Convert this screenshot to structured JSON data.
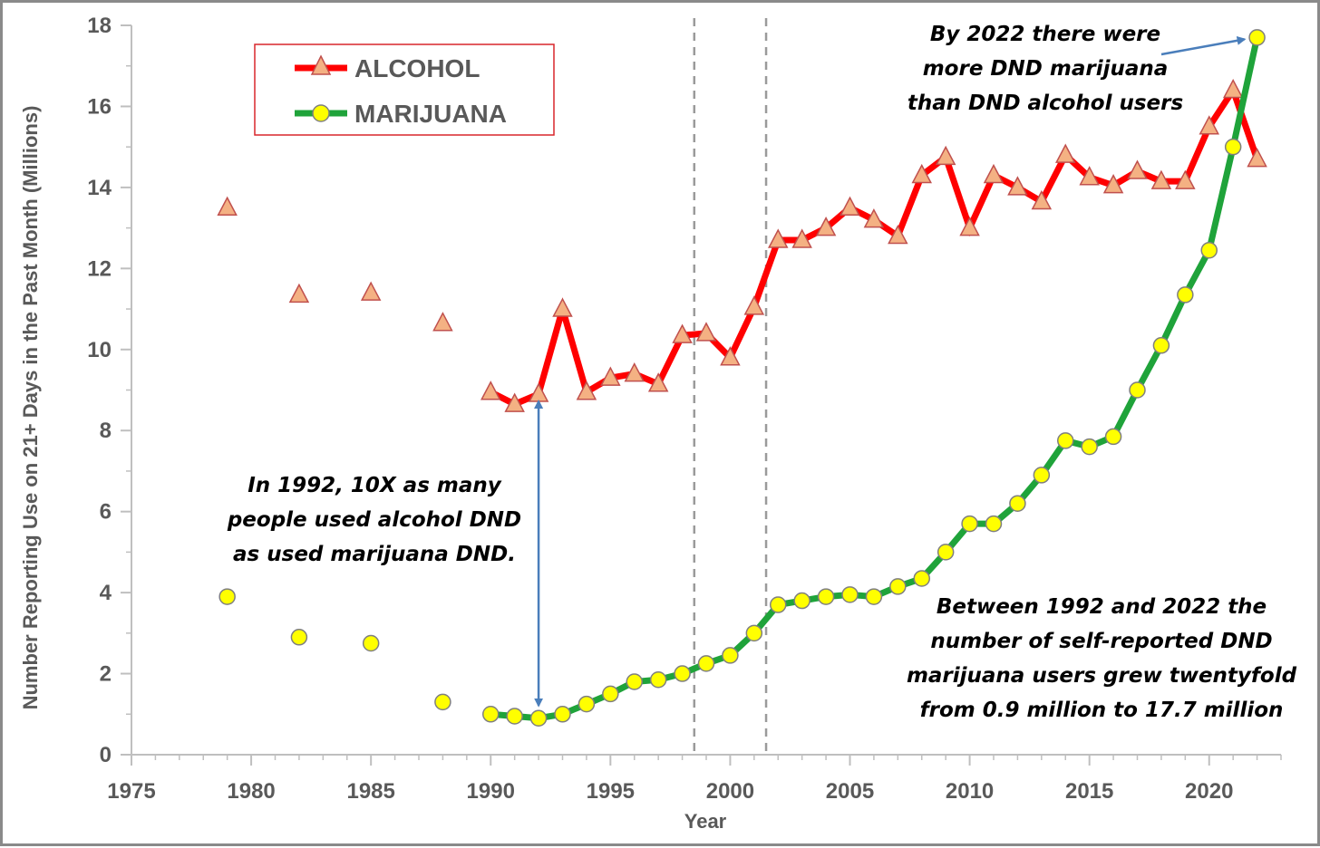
{
  "chart_data": {
    "type": "line",
    "xlabel": "Year",
    "ylabel": "Number Reporting Use on 21+ Days in the Past Month (Millions)",
    "xlim": [
      1975,
      2023
    ],
    "ylim": [
      0,
      18
    ],
    "x_ticks": [
      1975,
      1980,
      1985,
      1990,
      1995,
      2000,
      2005,
      2010,
      2015,
      2020
    ],
    "y_ticks": [
      0,
      2,
      4,
      6,
      8,
      10,
      12,
      14,
      16,
      18
    ],
    "vertical_reference_lines": [
      1998.5,
      2001.5
    ],
    "legend_position": "top-left",
    "series": [
      {
        "name": "ALCOHOL",
        "line_color": "#ff0000",
        "marker": "triangle",
        "marker_fill": "#f4b183",
        "marker_stroke": "#c0504d",
        "unconnected_points": [
          {
            "x": 1979,
            "y": 13.5
          },
          {
            "x": 1982,
            "y": 11.35
          },
          {
            "x": 1985,
            "y": 11.4
          },
          {
            "x": 1988,
            "y": 10.65
          }
        ],
        "connected_points": [
          {
            "x": 1990,
            "y": 8.95
          },
          {
            "x": 1991,
            "y": 8.65
          },
          {
            "x": 1992,
            "y": 8.9
          },
          {
            "x": 1993,
            "y": 11.0
          },
          {
            "x": 1994,
            "y": 8.95
          },
          {
            "x": 1995,
            "y": 9.3
          },
          {
            "x": 1996,
            "y": 9.4
          },
          {
            "x": 1997,
            "y": 9.15
          },
          {
            "x": 1998,
            "y": 10.35
          },
          {
            "x": 1999,
            "y": 10.4
          },
          {
            "x": 2000,
            "y": 9.8
          },
          {
            "x": 2001,
            "y": 11.05
          },
          {
            "x": 2002,
            "y": 12.7
          },
          {
            "x": 2003,
            "y": 12.7
          },
          {
            "x": 2004,
            "y": 13.0
          },
          {
            "x": 2005,
            "y": 13.5
          },
          {
            "x": 2006,
            "y": 13.2
          },
          {
            "x": 2007,
            "y": 12.8
          },
          {
            "x": 2008,
            "y": 14.3
          },
          {
            "x": 2009,
            "y": 14.75
          },
          {
            "x": 2010,
            "y": 13.0
          },
          {
            "x": 2011,
            "y": 14.3
          },
          {
            "x": 2012,
            "y": 14.0
          },
          {
            "x": 2013,
            "y": 13.65
          },
          {
            "x": 2014,
            "y": 14.8
          },
          {
            "x": 2015,
            "y": 14.25
          },
          {
            "x": 2016,
            "y": 14.05
          },
          {
            "x": 2017,
            "y": 14.4
          },
          {
            "x": 2018,
            "y": 14.15
          },
          {
            "x": 2019,
            "y": 14.15
          },
          {
            "x": 2020,
            "y": 15.5
          },
          {
            "x": 2021,
            "y": 16.4
          },
          {
            "x": 2022,
            "y": 14.7
          }
        ]
      },
      {
        "name": "MARIJUANA",
        "line_color": "#1fa33a",
        "marker": "circle",
        "marker_fill": "#ffff00",
        "marker_stroke": "#7f7f7f",
        "unconnected_points": [
          {
            "x": 1979,
            "y": 3.9
          },
          {
            "x": 1982,
            "y": 2.9
          },
          {
            "x": 1985,
            "y": 2.75
          },
          {
            "x": 1988,
            "y": 1.3
          }
        ],
        "connected_points": [
          {
            "x": 1990,
            "y": 1.0
          },
          {
            "x": 1991,
            "y": 0.95
          },
          {
            "x": 1992,
            "y": 0.9
          },
          {
            "x": 1993,
            "y": 1.0
          },
          {
            "x": 1994,
            "y": 1.25
          },
          {
            "x": 1995,
            "y": 1.5
          },
          {
            "x": 1996,
            "y": 1.8
          },
          {
            "x": 1997,
            "y": 1.85
          },
          {
            "x": 1998,
            "y": 2.0
          },
          {
            "x": 1999,
            "y": 2.25
          },
          {
            "x": 2000,
            "y": 2.45
          },
          {
            "x": 2001,
            "y": 3.0
          },
          {
            "x": 2002,
            "y": 3.7
          },
          {
            "x": 2003,
            "y": 3.8
          },
          {
            "x": 2004,
            "y": 3.9
          },
          {
            "x": 2005,
            "y": 3.95
          },
          {
            "x": 2006,
            "y": 3.9
          },
          {
            "x": 2007,
            "y": 4.15
          },
          {
            "x": 2008,
            "y": 4.35
          },
          {
            "x": 2009,
            "y": 5.0
          },
          {
            "x": 2010,
            "y": 5.7
          },
          {
            "x": 2011,
            "y": 5.7
          },
          {
            "x": 2012,
            "y": 6.2
          },
          {
            "x": 2013,
            "y": 6.9
          },
          {
            "x": 2014,
            "y": 7.75
          },
          {
            "x": 2015,
            "y": 7.6
          },
          {
            "x": 2016,
            "y": 7.85
          },
          {
            "x": 2017,
            "y": 9.0
          },
          {
            "x": 2018,
            "y": 10.1
          },
          {
            "x": 2019,
            "y": 11.35
          },
          {
            "x": 2020,
            "y": 12.45
          },
          {
            "x": 2021,
            "y": 15.0
          },
          {
            "x": 2022,
            "y": 17.7
          }
        ]
      }
    ],
    "annotations": {
      "top_right": [
        "By 2022  there were",
        "more DND marijuana",
        "than DND alcohol users"
      ],
      "left_middle": [
        "In 1992, 10X as many",
        "people used alcohol DND",
        "as used marijuana DND."
      ],
      "bottom_right": [
        "Between 1992 and 2022 the",
        "number of self-reported DND",
        "marijuana users grew twentyfold",
        "from 0.9 million to 17.7 million"
      ]
    },
    "arrows": [
      {
        "type": "double",
        "x": 1992,
        "y_from": 8.9,
        "y_to": 0.9
      },
      {
        "type": "single",
        "points_to": {
          "x": 2022,
          "y": 17.7
        }
      }
    ]
  }
}
